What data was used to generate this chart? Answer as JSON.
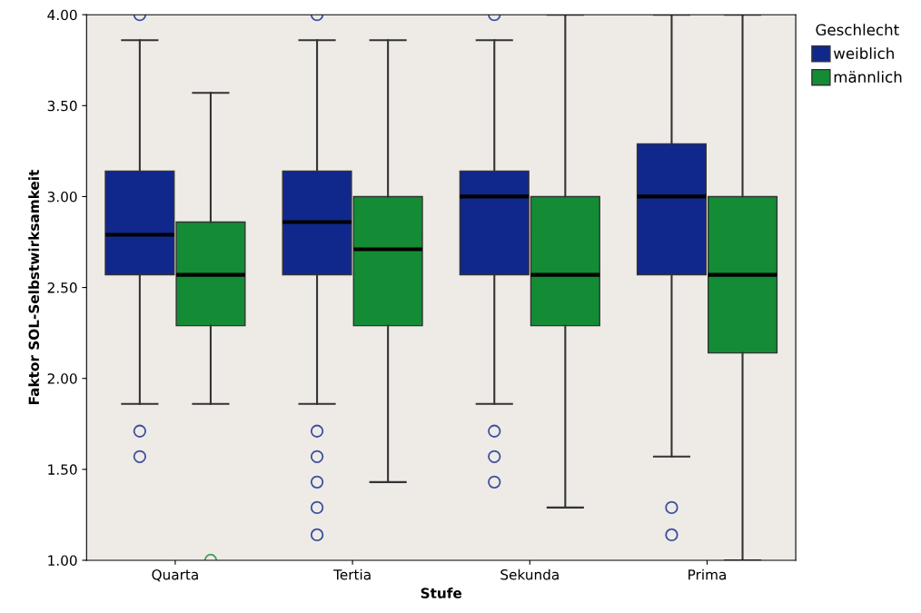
{
  "chart_data": {
    "type": "box",
    "xlabel": "Stufe",
    "ylabel": "Faktor SOL-Selbstwirksamkeit",
    "legend_title": "Geschlecht",
    "legend": "top right",
    "grid": false,
    "categories": [
      "Quarta",
      "Tertia",
      "Sekunda",
      "Prima"
    ],
    "ylim": [
      1.0,
      4.0
    ],
    "yticks": [
      {
        "value": 1.0,
        "label": "1.00"
      },
      {
        "value": 1.5,
        "label": "1.50"
      },
      {
        "value": 2.0,
        "label": "2.00"
      },
      {
        "value": 2.5,
        "label": "2.50"
      },
      {
        "value": 3.0,
        "label": "3.00"
      },
      {
        "value": 3.5,
        "label": "3.50"
      },
      {
        "value": 4.0,
        "label": "4.00"
      }
    ],
    "series": [
      {
        "name": "weiblich",
        "color": "#10288c",
        "boxes": [
          {
            "low": 1.86,
            "q1": 2.57,
            "median": 2.79,
            "q3": 3.14,
            "high": 3.86,
            "outliers": [
              4.0,
              1.71,
              1.57
            ]
          },
          {
            "low": 1.86,
            "q1": 2.57,
            "median": 2.86,
            "q3": 3.14,
            "high": 3.86,
            "outliers": [
              4.0,
              1.71,
              1.57,
              1.43,
              1.29,
              1.14
            ]
          },
          {
            "low": 1.86,
            "q1": 2.57,
            "median": 3.0,
            "q3": 3.14,
            "high": 3.86,
            "outliers": [
              4.0,
              1.71,
              1.57,
              1.43
            ]
          },
          {
            "low": 1.57,
            "q1": 2.57,
            "median": 3.0,
            "q3": 3.29,
            "high": 4.0,
            "outliers": [
              1.29,
              1.14
            ]
          }
        ]
      },
      {
        "name": "männlich",
        "color": "#138c35",
        "boxes": [
          {
            "low": 1.86,
            "q1": 2.29,
            "median": 2.57,
            "q3": 2.86,
            "high": 3.57,
            "outliers": [
              1.0
            ]
          },
          {
            "low": 1.43,
            "q1": 2.29,
            "median": 2.71,
            "q3": 3.0,
            "high": 3.86
          },
          {
            "low": 1.29,
            "q1": 2.29,
            "median": 2.57,
            "q3": 3.0,
            "high": 4.0
          },
          {
            "low": 1.0,
            "q1": 2.14,
            "median": 2.57,
            "q3": 3.0,
            "high": 4.0
          }
        ]
      }
    ]
  }
}
